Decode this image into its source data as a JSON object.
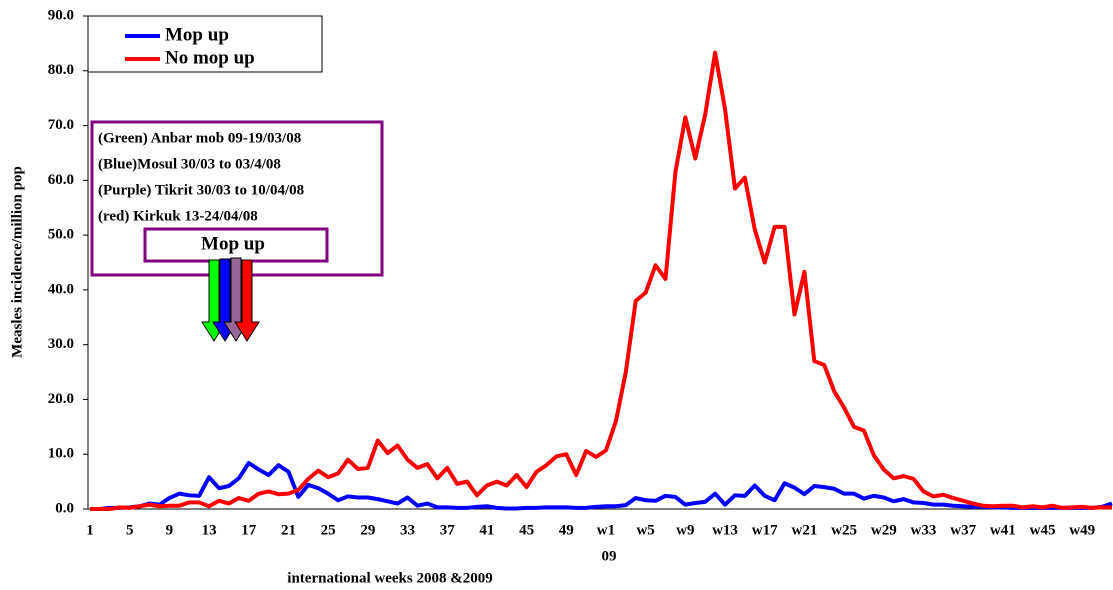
{
  "chart_data": {
    "type": "line",
    "y_label": "Measles incidence/million pop",
    "x_label": "international weeks 2008 &2009",
    "year_label": "09",
    "legend": "top-left",
    "annotation_lines": [
      "(Green) Anbar mob 09-19/03/08",
      "(Blue)Mosul 30/03 to 03/4/08",
      "(Purple) Tikrit 30/03 to 10/04/08",
      "(red) Kirkuk 13-24/04/08"
    ],
    "annotation_box": "Mop up",
    "categories": [
      "1",
      null,
      null,
      null,
      "5",
      null,
      null,
      null,
      "9",
      null,
      null,
      null,
      "13",
      null,
      null,
      null,
      "17",
      null,
      null,
      null,
      "21",
      null,
      null,
      null,
      "25",
      null,
      null,
      null,
      "29",
      null,
      null,
      null,
      "33",
      null,
      null,
      null,
      "37",
      null,
      null,
      null,
      "41",
      null,
      null,
      null,
      "45",
      null,
      null,
      null,
      "49",
      null,
      null,
      null,
      "w1",
      null,
      null,
      null,
      "w5",
      null,
      null,
      null,
      "w9",
      null,
      null,
      null,
      "w13",
      null,
      null,
      null,
      "w17",
      null,
      null,
      null,
      "w21",
      null,
      null,
      null,
      "w25",
      null,
      null,
      null,
      "w29",
      null,
      null,
      null,
      "w33",
      null,
      null,
      null,
      "w37",
      null,
      null,
      null,
      "w41",
      null,
      null,
      null,
      "w45",
      null,
      null,
      null,
      "w49",
      null,
      null,
      null
    ],
    "series": [
      {
        "name": "Mop up",
        "color": "#0000ff",
        "values": [
          0,
          0,
          0.2,
          0.2,
          0.3,
          0.5,
          1.0,
          0.8,
          2.0,
          2.8,
          2.5,
          2.4,
          5.8,
          3.8,
          4.2,
          5.6,
          8.4,
          7.2,
          6.2,
          8.0,
          6.8,
          2.2,
          4.4,
          3.8,
          2.8,
          1.6,
          2.3,
          2.1,
          2.1,
          1.8,
          1.4,
          1.0,
          2.1,
          0.6,
          1.0,
          0.3,
          0.3,
          0.2,
          0.2,
          0.4,
          0.5,
          0.2,
          0.1,
          0.1,
          0.2,
          0.2,
          0.3,
          0.3,
          0.3,
          0.2,
          0.2,
          0.4,
          0.5,
          0.5,
          0.7,
          2.0,
          1.6,
          1.5,
          2.4,
          2.2,
          0.8,
          1.1,
          1.3,
          2.8,
          0.8,
          2.5,
          2.4,
          4.3,
          2.4,
          1.6,
          4.7,
          3.9,
          2.7,
          4.2,
          4.0,
          3.7,
          2.8,
          2.8,
          1.9,
          2.4,
          2.1,
          1.4,
          1.8,
          1.2,
          1.1,
          0.8,
          0.8,
          0.6,
          0.5,
          0.4,
          0.4,
          0.3,
          0.3,
          0.2,
          0.2,
          0.2,
          0.2,
          0.2,
          0.2,
          0.2,
          0.2,
          0.2,
          0.4,
          1.0
        ]
      },
      {
        "name": "No mop up",
        "color": "#ff0000",
        "values": [
          0,
          0,
          0,
          0.3,
          0.2,
          0.5,
          0.8,
          0.5,
          0.6,
          0.6,
          1.2,
          1.2,
          0.5,
          1.5,
          1.0,
          2.0,
          1.5,
          2.8,
          3.2,
          2.7,
          2.8,
          3.5,
          5.5,
          7.0,
          5.8,
          6.5,
          9.0,
          7.3,
          7.5,
          12.5,
          10.2,
          11.6,
          9.0,
          7.5,
          8.2,
          5.6,
          7.5,
          4.6,
          5.0,
          2.5,
          4.3,
          5.0,
          4.3,
          6.2,
          4.0,
          6.8,
          8.0,
          9.6,
          10.0,
          6.2,
          10.6,
          9.5,
          10.7,
          16,
          25,
          38,
          39.5,
          44.5,
          42,
          61.5,
          71.5,
          64,
          72,
          83.3,
          73,
          58.5,
          60.5,
          51,
          45,
          51.5,
          51.5,
          35.5,
          43.3,
          27,
          26.3,
          21.5,
          18.5,
          15,
          14.3,
          9.8,
          7.2,
          5.6,
          6.0,
          5.5,
          3.2,
          2.3,
          2.6,
          2.0,
          1.5,
          1.0,
          0.6,
          0.5,
          0.6,
          0.6,
          0.3,
          0.5,
          0.3,
          0.6,
          0.2,
          0.3,
          0.4,
          0.2,
          0.3,
          0.3
        ]
      }
    ],
    "ylim": [
      0,
      90
    ],
    "yticks": [
      {
        "value": 0,
        "label": "0.0"
      },
      {
        "value": 10,
        "label": "10.0"
      },
      {
        "value": 20,
        "label": "20.0"
      },
      {
        "value": 30,
        "label": "30.0"
      },
      {
        "value": 40,
        "label": "40.0"
      },
      {
        "value": 50,
        "label": "50.0"
      },
      {
        "value": 60,
        "label": "60.0"
      },
      {
        "value": 70,
        "label": "70.0"
      },
      {
        "value": 80,
        "label": "80.0"
      },
      {
        "value": 90,
        "label": "90.0"
      }
    ],
    "grid": false
  }
}
